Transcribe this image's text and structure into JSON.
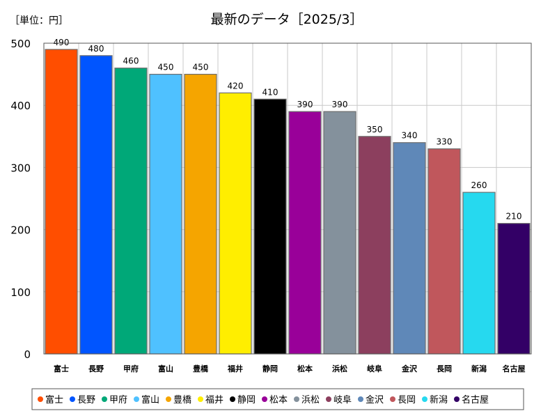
{
  "chart_data": {
    "type": "bar",
    "title": "最新のデータ［2025/3］",
    "unit_label": "［単位：円］",
    "categories": [
      "富士",
      "長野",
      "甲府",
      "富山",
      "豊橋",
      "福井",
      "静岡",
      "松本",
      "浜松",
      "岐阜",
      "金沢",
      "長岡",
      "新潟",
      "名古屋"
    ],
    "values": [
      490,
      480,
      460,
      450,
      450,
      420,
      410,
      390,
      390,
      350,
      340,
      330,
      260,
      210
    ],
    "data_labels": [
      "490",
      "480",
      "460",
      "450",
      "450",
      "420",
      "410",
      "390",
      "390",
      "350",
      "340",
      "330",
      "260",
      "210"
    ],
    "colors": [
      "#ff4e00",
      "#0055ff",
      "#00a878",
      "#4fc1ff",
      "#f5a500",
      "#ffee00",
      "#000000",
      "#990099",
      "#84919c",
      "#8c3f5e",
      "#5f88b8",
      "#c0575c",
      "#26d9ef",
      "#330066"
    ],
    "ylim": [
      0,
      500
    ],
    "yticks": [
      0,
      100,
      200,
      300,
      400,
      500
    ],
    "ytick_labels": [
      "0",
      "100",
      "200",
      "300",
      "400",
      "500"
    ],
    "xlabel": "",
    "ylabel": "",
    "grid": true,
    "legend_position": "bottom"
  }
}
